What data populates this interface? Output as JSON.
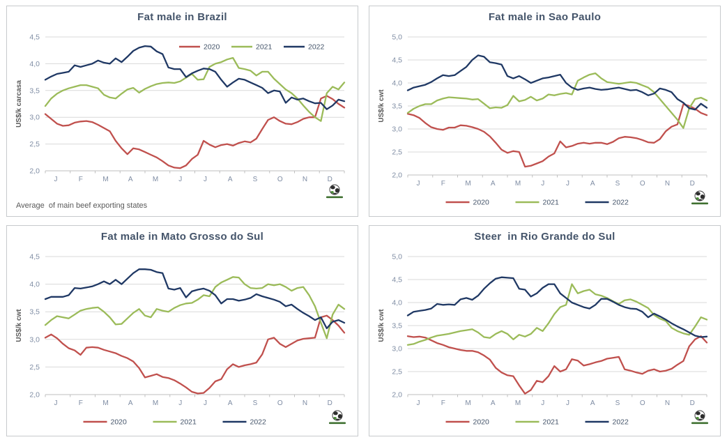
{
  "theme": {
    "grid_color": "#d9d9d9",
    "axis_color": "#bfbfbf",
    "tick_label_color": "#7e8ca3",
    "title_color": "#44546A",
    "ylabel_color": "#595959",
    "legend_text_color": "#44546A",
    "footnote_color": "#595959",
    "logo_green": "#4e8f3a",
    "logo_dark": "#2d2d2d"
  },
  "chart_data": [
    {
      "type": "line",
      "title": "Fat male in Brazil",
      "ylabel": "US$/k carcasa",
      "footnote": "Average  of main beef exporting states",
      "logo_icon": "globe-logo",
      "ylim": [
        2.0,
        4.5
      ],
      "ytick_step": 0.5,
      "legend_position": "top-right-inset",
      "categories": [
        "J",
        "F",
        "M",
        "A",
        "M",
        "J",
        "J",
        "A",
        "S",
        "O",
        "N",
        "D"
      ],
      "series": [
        {
          "name": "2020",
          "color": "#C0504D",
          "values": [
            3.06,
            2.97,
            2.88,
            2.84,
            2.85,
            2.9,
            2.92,
            2.93,
            2.91,
            2.86,
            2.8,
            2.74,
            2.56,
            2.42,
            2.31,
            2.42,
            2.4,
            2.35,
            2.3,
            2.25,
            2.18,
            2.1,
            2.06,
            2.05,
            2.1,
            2.22,
            2.3,
            2.56,
            2.49,
            2.44,
            2.48,
            2.5,
            2.47,
            2.52,
            2.55,
            2.53,
            2.6,
            2.78,
            2.95,
            3.0,
            2.93,
            2.88,
            2.87,
            2.91,
            2.97,
            3.0,
            3.0,
            3.35,
            3.4,
            3.34,
            3.25,
            3.18
          ]
        },
        {
          "name": "2021",
          "color": "#9BBB59",
          "values": [
            3.21,
            3.35,
            3.44,
            3.5,
            3.54,
            3.57,
            3.6,
            3.6,
            3.57,
            3.54,
            3.42,
            3.37,
            3.35,
            3.44,
            3.52,
            3.55,
            3.46,
            3.53,
            3.58,
            3.62,
            3.64,
            3.65,
            3.64,
            3.67,
            3.74,
            3.81,
            3.7,
            3.71,
            3.94,
            4.0,
            4.03,
            4.08,
            4.11,
            3.92,
            3.9,
            3.87,
            3.78,
            3.85,
            3.85,
            3.72,
            3.62,
            3.52,
            3.45,
            3.35,
            3.22,
            3.1,
            3.0,
            2.93,
            3.45,
            3.57,
            3.52,
            3.65
          ]
        },
        {
          "name": "2022",
          "color": "#1F3864",
          "values": [
            3.7,
            3.76,
            3.81,
            3.83,
            3.85,
            3.97,
            3.94,
            3.97,
            4.0,
            4.06,
            4.02,
            4.0,
            4.1,
            4.03,
            4.13,
            4.24,
            4.3,
            4.33,
            4.32,
            4.23,
            4.18,
            3.93,
            3.9,
            3.9,
            3.75,
            3.82,
            3.87,
            3.91,
            3.9,
            3.85,
            3.7,
            3.57,
            3.65,
            3.72,
            3.7,
            3.65,
            3.6,
            3.55,
            3.45,
            3.5,
            3.48,
            3.27,
            3.37,
            3.33,
            3.35,
            3.3,
            3.26,
            3.27,
            3.15,
            3.22,
            3.33,
            3.3
          ]
        }
      ]
    },
    {
      "type": "line",
      "title": "Fat male in Sao Paulo",
      "ylabel": "US$/k cwt",
      "logo_icon": "globe-logo",
      "ylim": [
        2.0,
        5.0
      ],
      "ytick_step": 0.5,
      "legend_position": "bottom",
      "categories": [
        "J",
        "F",
        "M",
        "A",
        "M",
        "J",
        "J",
        "A",
        "S",
        "O",
        "N",
        "D"
      ],
      "series": [
        {
          "name": "2020",
          "color": "#C0504D",
          "values": [
            3.33,
            3.3,
            3.24,
            3.13,
            3.04,
            3.0,
            2.98,
            3.03,
            3.03,
            3.08,
            3.07,
            3.04,
            3.0,
            2.94,
            2.84,
            2.7,
            2.55,
            2.48,
            2.52,
            2.5,
            2.18,
            2.2,
            2.25,
            2.3,
            2.4,
            2.47,
            2.73,
            2.6,
            2.63,
            2.68,
            2.7,
            2.68,
            2.7,
            2.7,
            2.67,
            2.72,
            2.8,
            2.83,
            2.82,
            2.8,
            2.76,
            2.71,
            2.7,
            2.78,
            2.95,
            3.05,
            3.1,
            3.54,
            3.5,
            3.44,
            3.35,
            3.3
          ]
        },
        {
          "name": "2021",
          "color": "#9BBB59",
          "values": [
            3.35,
            3.44,
            3.5,
            3.54,
            3.54,
            3.62,
            3.66,
            3.69,
            3.68,
            3.67,
            3.66,
            3.64,
            3.65,
            3.55,
            3.45,
            3.47,
            3.46,
            3.52,
            3.72,
            3.6,
            3.63,
            3.7,
            3.62,
            3.66,
            3.75,
            3.73,
            3.76,
            3.78,
            3.75,
            4.05,
            4.12,
            4.18,
            4.21,
            4.1,
            4.02,
            4.0,
            3.98,
            4.0,
            4.02,
            4.0,
            3.95,
            3.9,
            3.8,
            3.65,
            3.5,
            3.35,
            3.2,
            3.02,
            3.45,
            3.65,
            3.68,
            3.62
          ]
        },
        {
          "name": "2022",
          "color": "#1F3864",
          "values": [
            3.84,
            3.9,
            3.93,
            3.96,
            4.02,
            4.1,
            4.17,
            4.15,
            4.17,
            4.26,
            4.35,
            4.5,
            4.6,
            4.57,
            4.45,
            4.43,
            4.4,
            4.15,
            4.1,
            4.15,
            4.08,
            4.0,
            4.05,
            4.1,
            4.12,
            4.15,
            4.18,
            4.0,
            3.9,
            3.85,
            3.88,
            3.9,
            3.87,
            3.85,
            3.86,
            3.88,
            3.9,
            3.87,
            3.84,
            3.85,
            3.8,
            3.73,
            3.77,
            3.88,
            3.85,
            3.8,
            3.65,
            3.57,
            3.45,
            3.42,
            3.55,
            3.46
          ]
        }
      ]
    },
    {
      "type": "line",
      "title": "Fat male in Mato Grosso do Sul",
      "ylabel": "US$/k cwt",
      "logo_icon": "globe-logo",
      "ylim": [
        2.0,
        4.5
      ],
      "ytick_step": 0.5,
      "legend_position": "bottom",
      "categories": [
        "J",
        "F",
        "M",
        "A",
        "M",
        "J",
        "J",
        "A",
        "S",
        "O",
        "N",
        "D"
      ],
      "series": [
        {
          "name": "2020",
          "color": "#C0504D",
          "values": [
            3.03,
            3.09,
            3.02,
            2.92,
            2.84,
            2.8,
            2.72,
            2.85,
            2.86,
            2.85,
            2.81,
            2.78,
            2.75,
            2.7,
            2.66,
            2.6,
            2.48,
            2.31,
            2.34,
            2.37,
            2.32,
            2.3,
            2.26,
            2.2,
            2.13,
            2.05,
            2.02,
            2.03,
            2.12,
            2.24,
            2.28,
            2.46,
            2.55,
            2.5,
            2.53,
            2.55,
            2.58,
            2.73,
            3.0,
            3.03,
            2.92,
            2.86,
            2.92,
            2.98,
            3.01,
            3.02,
            3.03,
            3.4,
            3.43,
            3.35,
            3.25,
            3.12
          ]
        },
        {
          "name": "2021",
          "color": "#9BBB59",
          "values": [
            3.26,
            3.35,
            3.42,
            3.4,
            3.38,
            3.45,
            3.52,
            3.55,
            3.57,
            3.58,
            3.5,
            3.4,
            3.27,
            3.28,
            3.38,
            3.48,
            3.55,
            3.43,
            3.4,
            3.55,
            3.52,
            3.5,
            3.57,
            3.62,
            3.65,
            3.66,
            3.72,
            3.8,
            3.78,
            3.95,
            4.03,
            4.08,
            4.13,
            4.12,
            4.0,
            3.93,
            3.92,
            3.93,
            4.0,
            3.98,
            4.0,
            3.95,
            3.88,
            3.93,
            3.95,
            3.8,
            3.6,
            3.3,
            3.02,
            3.45,
            3.63,
            3.55
          ]
        },
        {
          "name": "2022",
          "color": "#1F3864",
          "values": [
            3.73,
            3.77,
            3.77,
            3.77,
            3.8,
            3.93,
            3.92,
            3.94,
            3.96,
            4.0,
            4.05,
            4.0,
            4.08,
            4.0,
            4.1,
            4.2,
            4.27,
            4.27,
            4.26,
            4.22,
            4.2,
            3.92,
            3.9,
            3.93,
            3.76,
            3.87,
            3.9,
            3.92,
            3.88,
            3.8,
            3.65,
            3.73,
            3.73,
            3.7,
            3.72,
            3.75,
            3.82,
            3.78,
            3.75,
            3.72,
            3.68,
            3.6,
            3.63,
            3.55,
            3.48,
            3.42,
            3.35,
            3.4,
            3.2,
            3.32,
            3.35,
            3.3
          ]
        }
      ]
    },
    {
      "type": "line",
      "title": "Steer  in Rio Grande do Sul",
      "ylabel": "US$/k cwt",
      "logo_icon": "globe-logo",
      "ylim": [
        2.0,
        5.0
      ],
      "ytick_step": 0.5,
      "legend_position": "bottom",
      "categories": [
        "J",
        "F",
        "M",
        "A",
        "M",
        "J",
        "J",
        "A",
        "S",
        "O",
        "N",
        "D"
      ],
      "series": [
        {
          "name": "2020",
          "color": "#C0504D",
          "values": [
            3.27,
            3.25,
            3.26,
            3.24,
            3.18,
            3.12,
            3.08,
            3.03,
            3.0,
            2.97,
            2.95,
            2.95,
            2.92,
            2.85,
            2.76,
            2.58,
            2.48,
            2.42,
            2.4,
            2.2,
            2.02,
            2.1,
            2.3,
            2.27,
            2.4,
            2.62,
            2.5,
            2.55,
            2.77,
            2.74,
            2.63,
            2.66,
            2.7,
            2.73,
            2.78,
            2.8,
            2.82,
            2.55,
            2.52,
            2.48,
            2.45,
            2.52,
            2.55,
            2.5,
            2.52,
            2.56,
            2.65,
            2.73,
            3.05,
            3.2,
            3.27,
            3.13
          ]
        },
        {
          "name": "2021",
          "color": "#9BBB59",
          "values": [
            3.08,
            3.1,
            3.15,
            3.19,
            3.24,
            3.28,
            3.3,
            3.32,
            3.35,
            3.38,
            3.4,
            3.42,
            3.35,
            3.25,
            3.23,
            3.32,
            3.38,
            3.32,
            3.2,
            3.3,
            3.26,
            3.32,
            3.45,
            3.38,
            3.55,
            3.75,
            3.9,
            3.95,
            4.4,
            4.2,
            4.25,
            4.28,
            4.18,
            4.15,
            4.1,
            4.03,
            3.97,
            4.05,
            4.07,
            4.02,
            3.95,
            3.88,
            3.73,
            3.65,
            3.6,
            3.45,
            3.38,
            3.33,
            3.3,
            3.48,
            3.68,
            3.63
          ]
        },
        {
          "name": "2022",
          "color": "#1F3864",
          "values": [
            3.72,
            3.8,
            3.82,
            3.84,
            3.87,
            3.97,
            3.95,
            3.96,
            3.95,
            4.07,
            4.1,
            4.06,
            4.15,
            4.3,
            4.42,
            4.52,
            4.55,
            4.54,
            4.53,
            4.3,
            4.28,
            4.13,
            4.2,
            4.32,
            4.4,
            4.4,
            4.2,
            4.1,
            4.0,
            3.95,
            3.9,
            3.87,
            3.95,
            4.08,
            4.08,
            4.02,
            3.95,
            3.9,
            3.87,
            3.86,
            3.8,
            3.68,
            3.76,
            3.7,
            3.63,
            3.55,
            3.48,
            3.42,
            3.35,
            3.28,
            3.25,
            3.26
          ]
        }
      ]
    }
  ]
}
